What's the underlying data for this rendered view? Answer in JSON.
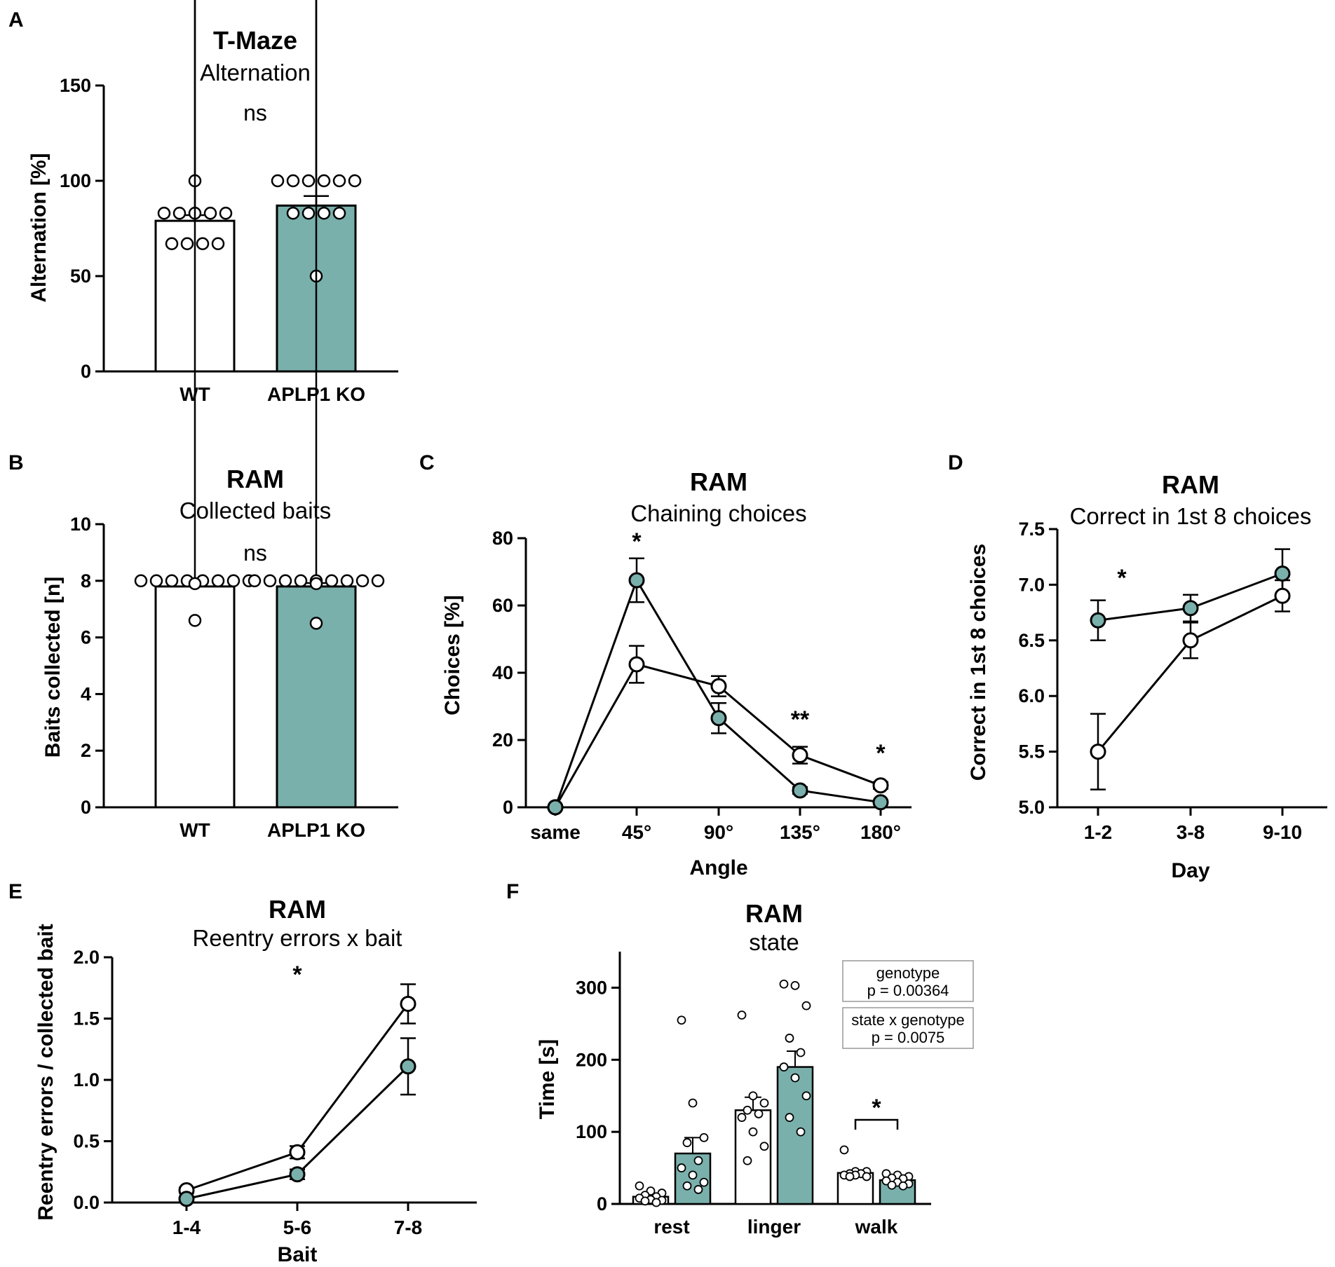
{
  "colors": {
    "wt_fill": "#ffffff",
    "ko_fill": "#7ab0ab",
    "stroke": "#000000"
  },
  "chart_data": [
    {
      "panel": "A",
      "type": "bar",
      "title": "T-Maze",
      "subtitle": "Alternation",
      "ylabel": "Alternation [%]",
      "ylim": [
        0,
        150
      ],
      "yticks": [
        0,
        50,
        100,
        150
      ],
      "categories": [
        "WT",
        "APLP1 KO"
      ],
      "values": [
        79,
        87
      ],
      "errors": [
        3,
        5
      ],
      "points": [
        [
          100,
          83,
          83,
          83,
          83,
          83,
          67,
          67,
          67,
          67
        ],
        [
          100,
          100,
          100,
          100,
          100,
          100,
          83,
          83,
          83,
          83,
          50
        ]
      ],
      "annotations": [
        "ns"
      ]
    },
    {
      "panel": "B",
      "type": "bar",
      "title": "RAM",
      "subtitle": "Collected baits",
      "ylabel": "Baits collected [n]",
      "ylim": [
        0,
        10
      ],
      "yticks": [
        0,
        2,
        4,
        6,
        8,
        10
      ],
      "categories": [
        "WT",
        "APLP1 KO"
      ],
      "values": [
        7.8,
        7.8
      ],
      "errors": [
        0.12,
        0.12
      ],
      "points": [
        [
          8,
          8,
          8,
          8,
          8,
          8,
          8,
          7.9,
          8,
          6.6
        ],
        [
          8,
          8,
          8,
          8,
          8,
          7.9,
          8,
          8,
          8,
          8,
          6.5
        ]
      ],
      "annotations": [
        "ns"
      ]
    },
    {
      "panel": "C",
      "type": "line",
      "title": "RAM",
      "subtitle": "Chaining choices",
      "xlabel": "Angle",
      "ylabel": "Choices [%]",
      "ylim": [
        0,
        80
      ],
      "yticks": [
        0,
        20,
        40,
        60,
        80
      ],
      "x": [
        "same",
        "45°",
        "90°",
        "135°",
        "180°"
      ],
      "series": [
        {
          "name": "WT",
          "values": [
            0,
            42.5,
            36,
            15.5,
            6.5
          ],
          "errors": [
            0,
            5.5,
            3,
            2.5,
            1
          ]
        },
        {
          "name": "APLP1 KO",
          "values": [
            0,
            67.5,
            26.5,
            5,
            1.5
          ],
          "errors": [
            0,
            6.5,
            4.5,
            1,
            0.5
          ]
        }
      ],
      "annotations": [
        "*",
        "**",
        "*"
      ]
    },
    {
      "panel": "D",
      "type": "line",
      "title": "RAM",
      "subtitle": "Correct in 1st 8 choices",
      "xlabel": "Day",
      "ylabel": "Correct in 1st 8 choices",
      "ylim": [
        5.0,
        7.5
      ],
      "yticks": [
        "5.0",
        "5.5",
        "6.0",
        "6.5",
        "7.0",
        "7.5"
      ],
      "x": [
        "1-2",
        "3-8",
        "9-10"
      ],
      "series": [
        {
          "name": "WT",
          "values": [
            5.5,
            6.5,
            6.9
          ],
          "errors": [
            0.34,
            0.16,
            0.14
          ]
        },
        {
          "name": "APLP1 KO",
          "values": [
            6.68,
            6.79,
            7.1
          ],
          "errors": [
            0.18,
            0.12,
            0.22
          ]
        }
      ],
      "annotations": [
        "*"
      ]
    },
    {
      "panel": "E",
      "type": "line",
      "title": "RAM",
      "subtitle": "Reentry errors x bait",
      "xlabel": "Bait",
      "ylabel": "Reentry errors / collected bait",
      "ylim": [
        0,
        2.0
      ],
      "yticks": [
        "0.0",
        "0.5",
        "1.0",
        "1.5",
        "2.0"
      ],
      "x": [
        "1-4",
        "5-6",
        "7-8"
      ],
      "series": [
        {
          "name": "WT",
          "values": [
            0.1,
            0.41,
            1.62
          ],
          "errors": [
            0.02,
            0.05,
            0.16
          ]
        },
        {
          "name": "APLP1 KO",
          "values": [
            0.03,
            0.23,
            1.11
          ],
          "errors": [
            0.01,
            0.04,
            0.23
          ]
        }
      ],
      "annotations": [
        "*"
      ]
    },
    {
      "panel": "F",
      "type": "bar",
      "title": "RAM",
      "subtitle": "state",
      "ylabel": "Time [s]",
      "ylim": [
        0,
        350
      ],
      "yticks": [
        0,
        100,
        200,
        300
      ],
      "categories": [
        "rest",
        "linger",
        "walk"
      ],
      "series": [
        {
          "name": "WT",
          "values": [
            10,
            130,
            43
          ],
          "errors": [
            2,
            18,
            3
          ],
          "points": [
            [
              25,
              18,
              15,
              12,
              10,
              8,
              6,
              5,
              4,
              2
            ],
            [
              262,
              150,
              140,
              130,
              125,
              120,
              100,
              80,
              60
            ],
            [
              75,
              45,
              45,
              42,
              42,
              40,
              40,
              38,
              38
            ]
          ]
        },
        {
          "name": "APLP1 KO",
          "values": [
            70,
            190,
            33
          ],
          "errors": [
            22,
            22,
            3
          ],
          "points": [
            [
              255,
              140,
              92,
              85,
              60,
              50,
              40,
              30,
              25,
              20
            ],
            [
              305,
              303,
              275,
              230,
              210,
              190,
              175,
              150,
              120,
              100
            ],
            [
              42,
              40,
              38,
              36,
              35,
              32,
              30,
              28,
              26,
              25
            ]
          ]
        }
      ],
      "annotations": [
        "*"
      ],
      "stats": [
        {
          "label": "genotype",
          "p": "p = 0.00364"
        },
        {
          "label": "state x genotype",
          "p": "p = 0.0075"
        }
      ]
    }
  ]
}
